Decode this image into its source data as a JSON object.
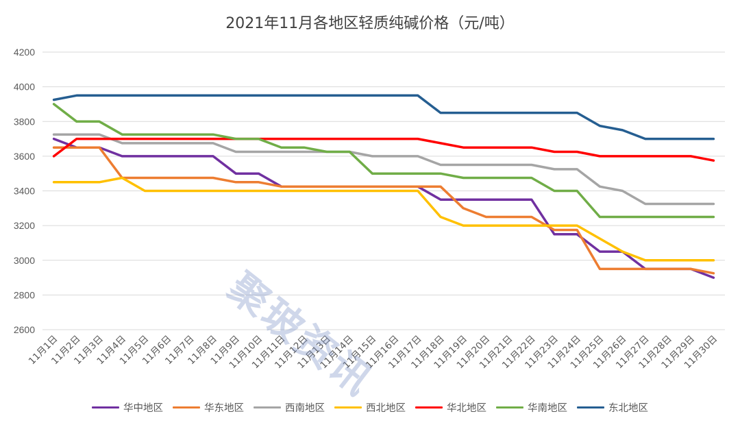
{
  "chart_data": {
    "type": "line",
    "title": "2021年11月各地区轻质纯碱价格（元/吨）",
    "xlabel": "",
    "ylabel": "",
    "ylim": [
      2600,
      4200
    ],
    "yticks": [
      2600,
      2800,
      3000,
      3200,
      3400,
      3600,
      3800,
      4000,
      4200
    ],
    "grid": true,
    "legend_position": "bottom",
    "categories": [
      "11月1日",
      "11月2日",
      "11月3日",
      "11月4日",
      "11月5日",
      "11月6日",
      "11月7日",
      "11月8日",
      "11月9日",
      "11月10日",
      "11月11日",
      "11月12日",
      "11月13日",
      "11月14日",
      "11月15日",
      "11月16日",
      "11月17日",
      "11月18日",
      "11月19日",
      "11月20日",
      "11月21日",
      "11月22日",
      "11月23日",
      "11月24日",
      "11月25日",
      "11月26日",
      "11月27日",
      "11月28日",
      "11月29日",
      "11月30日"
    ],
    "series": [
      {
        "name": "华中地区",
        "color": "#7030A0",
        "values": [
          3700,
          3650,
          3650,
          3600,
          3600,
          3600,
          3600,
          3600,
          3500,
          3500,
          3425,
          3425,
          3425,
          3425,
          3425,
          3425,
          3425,
          3350,
          3350,
          3350,
          3350,
          3350,
          3150,
          3150,
          3050,
          3050,
          2950,
          2950,
          2950,
          2900
        ]
      },
      {
        "name": "华东地区",
        "color": "#ED7D31",
        "values": [
          3650,
          3650,
          3650,
          3475,
          3475,
          3475,
          3475,
          3475,
          3450,
          3450,
          3425,
          3425,
          3425,
          3425,
          3425,
          3425,
          3425,
          3425,
          3300,
          3250,
          3250,
          3250,
          3175,
          3175,
          2950,
          2950,
          2950,
          2950,
          2950,
          2925
        ]
      },
      {
        "name": "西南地区",
        "color": "#A5A5A5",
        "values": [
          3725,
          3725,
          3725,
          3675,
          3675,
          3675,
          3675,
          3675,
          3625,
          3625,
          3625,
          3625,
          3625,
          3625,
          3600,
          3600,
          3600,
          3550,
          3550,
          3550,
          3550,
          3550,
          3525,
          3525,
          3425,
          3400,
          3325,
          3325,
          3325,
          3325
        ]
      },
      {
        "name": "西北地区",
        "color": "#FFC000",
        "values": [
          3450,
          3450,
          3450,
          3475,
          3400,
          3400,
          3400,
          3400,
          3400,
          3400,
          3400,
          3400,
          3400,
          3400,
          3400,
          3400,
          3400,
          3250,
          3200,
          3200,
          3200,
          3200,
          3200,
          3200,
          3125,
          3050,
          3000,
          3000,
          3000,
          3000
        ]
      },
      {
        "name": "华北地区",
        "color": "#FF0000",
        "values": [
          3600,
          3700,
          3700,
          3700,
          3700,
          3700,
          3700,
          3700,
          3700,
          3700,
          3700,
          3700,
          3700,
          3700,
          3700,
          3700,
          3700,
          3675,
          3650,
          3650,
          3650,
          3650,
          3625,
          3625,
          3600,
          3600,
          3600,
          3600,
          3600,
          3575
        ]
      },
      {
        "name": "华南地区",
        "color": "#70AD47",
        "values": [
          3900,
          3800,
          3800,
          3725,
          3725,
          3725,
          3725,
          3725,
          3700,
          3700,
          3650,
          3650,
          3625,
          3625,
          3500,
          3500,
          3500,
          3500,
          3475,
          3475,
          3475,
          3475,
          3400,
          3400,
          3250,
          3250,
          3250,
          3250,
          3250,
          3250
        ]
      },
      {
        "name": "东北地区",
        "color": "#255E91",
        "values": [
          3925,
          3950,
          3950,
          3950,
          3950,
          3950,
          3950,
          3950,
          3950,
          3950,
          3950,
          3950,
          3950,
          3950,
          3950,
          3950,
          3950,
          3850,
          3850,
          3850,
          3850,
          3850,
          3850,
          3850,
          3775,
          3750,
          3700,
          3700,
          3700,
          3700
        ]
      }
    ]
  },
  "watermark": "聚玻资讯"
}
